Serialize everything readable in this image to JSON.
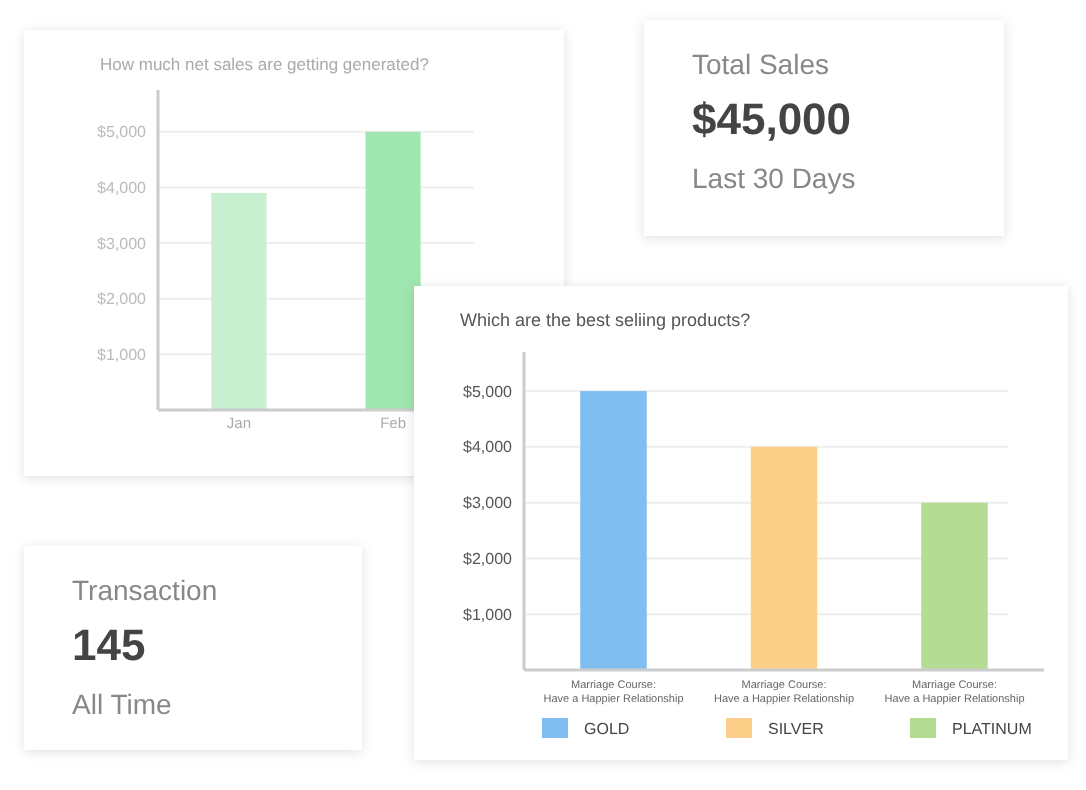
{
  "chart_data": [
    {
      "type": "bar",
      "title": "How much net sales are getting generated?",
      "categories": [
        "Jan",
        "Feb"
      ],
      "values": [
        3900,
        5000
      ],
      "colors": [
        "#c8f0d0",
        "#a0e6b0"
      ],
      "ylim": [
        0,
        5750
      ],
      "yticks": [
        {
          "value": 1000,
          "label": "$1,000"
        },
        {
          "value": 2000,
          "label": "$2,000"
        },
        {
          "value": 3000,
          "label": "$3,000"
        },
        {
          "value": 4000,
          "label": "$4,000"
        },
        {
          "value": 5000,
          "label": "$5,000"
        }
      ],
      "grid": "y"
    },
    {
      "type": "other",
      "title": "Total Sales",
      "annotations": [
        "$45,000",
        "Last 30 Days"
      ]
    },
    {
      "type": "bar",
      "title": "Which are the best seliing products?",
      "categories": [
        "Marriage Course:\nHave a Happier Relationship",
        "Marriage Course:\nHave a Happier Relationship",
        "Marriage Course:\nHave a Happier Relationship"
      ],
      "series": [
        {
          "name": "GOLD",
          "color": "#80bdf0",
          "values": [
            5000,
            null,
            null
          ]
        },
        {
          "name": "SILVER",
          "color": "#fdd08a",
          "values": [
            null,
            4000,
            null
          ]
        },
        {
          "name": "PLATINUM",
          "color": "#b5dc93",
          "values": [
            null,
            null,
            3000
          ]
        }
      ],
      "ylim": [
        0,
        5700
      ],
      "yticks": [
        {
          "value": 1000,
          "label": "$1,000"
        },
        {
          "value": 2000,
          "label": "$2,000"
        },
        {
          "value": 3000,
          "label": "$3,000"
        },
        {
          "value": 4000,
          "label": "$4,000"
        },
        {
          "value": 5000,
          "label": "$5,000"
        }
      ],
      "grid": "y",
      "legend": "bottom"
    },
    {
      "type": "other",
      "title": "Transaction",
      "annotations": [
        "145",
        "All Time"
      ]
    }
  ]
}
